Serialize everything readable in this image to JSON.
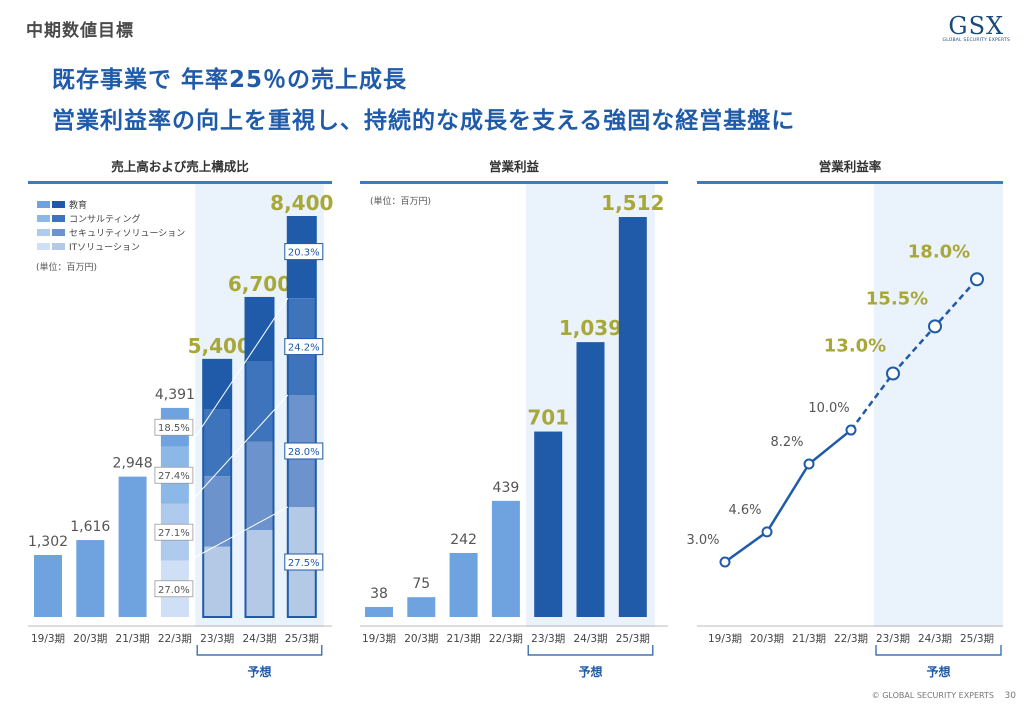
{
  "header": {
    "section_label": "中期数値目標",
    "logo": "GSX",
    "logo_sub": "GLOBAL SECURITY EXPERTS",
    "headline_1": "既存事業で 年率25％の売上成長",
    "headline_2": "営業利益率の向上を重視し、持続的な成長を支える強固な経営基盤に"
  },
  "footer": {
    "copyright": "© GLOBAL SECURITY EXPERTS",
    "page": "30"
  },
  "colors": {
    "actual_bar": "#6fa3e0",
    "forecast_bar": "#1f5ba8",
    "forecast_bg": "#eaf2fb",
    "value_forecast": "#a8a83a",
    "line": "#1f5ba8",
    "header_rule": "#3a7bc8"
  },
  "chart_data": [
    {
      "type": "bar",
      "title": "売上高および売上構成比",
      "unit_label": "(単位：百万円)",
      "forecast_label": "予想",
      "categories": [
        "19/3期",
        "20/3期",
        "21/3期",
        "22/3期",
        "23/3期",
        "24/3期",
        "25/3期"
      ],
      "values": [
        1302,
        1616,
        2948,
        4391,
        5400,
        6700,
        8400
      ],
      "value_labels": [
        "1,302",
        "1,616",
        "2,948",
        "4,391",
        "5,400",
        "6,700",
        "8,400"
      ],
      "forecast_from_index": 4,
      "ylim": [
        0,
        8400
      ],
      "legend": [
        "教育",
        "コンサルティング",
        "セキュリティソリューション",
        "ITソリューション"
      ],
      "segments_top_to_bottom": {
        "22/3期": [
          "18.5%",
          "27.4%",
          "27.1%",
          "27.0%"
        ],
        "25/3期": [
          "20.3%",
          "24.2%",
          "28.0%",
          "27.5%"
        ]
      },
      "segment_shares_top_to_bottom": {
        "22/3期": [
          18.5,
          27.4,
          27.1,
          27.0
        ],
        "23/3期": [
          19.4,
          25.8,
          27.5,
          27.3
        ],
        "24/3期": [
          20.0,
          25.0,
          27.8,
          27.2
        ],
        "25/3期": [
          20.3,
          24.2,
          28.0,
          27.5
        ]
      }
    },
    {
      "type": "bar",
      "title": "営業利益",
      "unit_label": "(単位：百万円)",
      "forecast_label": "予想",
      "categories": [
        "19/3期",
        "20/3期",
        "21/3期",
        "22/3期",
        "23/3期",
        "24/3期",
        "25/3期"
      ],
      "values": [
        38,
        75,
        242,
        439,
        701,
        1039,
        1512
      ],
      "value_labels": [
        "38",
        "75",
        "242",
        "439",
        "701",
        "1,039",
        "1,512"
      ],
      "forecast_from_index": 4,
      "ylim": [
        0,
        1512
      ]
    },
    {
      "type": "line",
      "title": "営業利益率",
      "forecast_label": "予想",
      "categories": [
        "19/3期",
        "20/3期",
        "21/3期",
        "22/3期",
        "23/3期",
        "24/3期",
        "25/3期"
      ],
      "values": [
        3.0,
        4.6,
        8.2,
        10.0,
        13.0,
        15.5,
        18.0
      ],
      "value_labels": [
        "3.0%",
        "4.6%",
        "8.2%",
        "10.0%",
        "13.0%",
        "15.5%",
        "18.0%"
      ],
      "forecast_from_index": 4
    }
  ]
}
